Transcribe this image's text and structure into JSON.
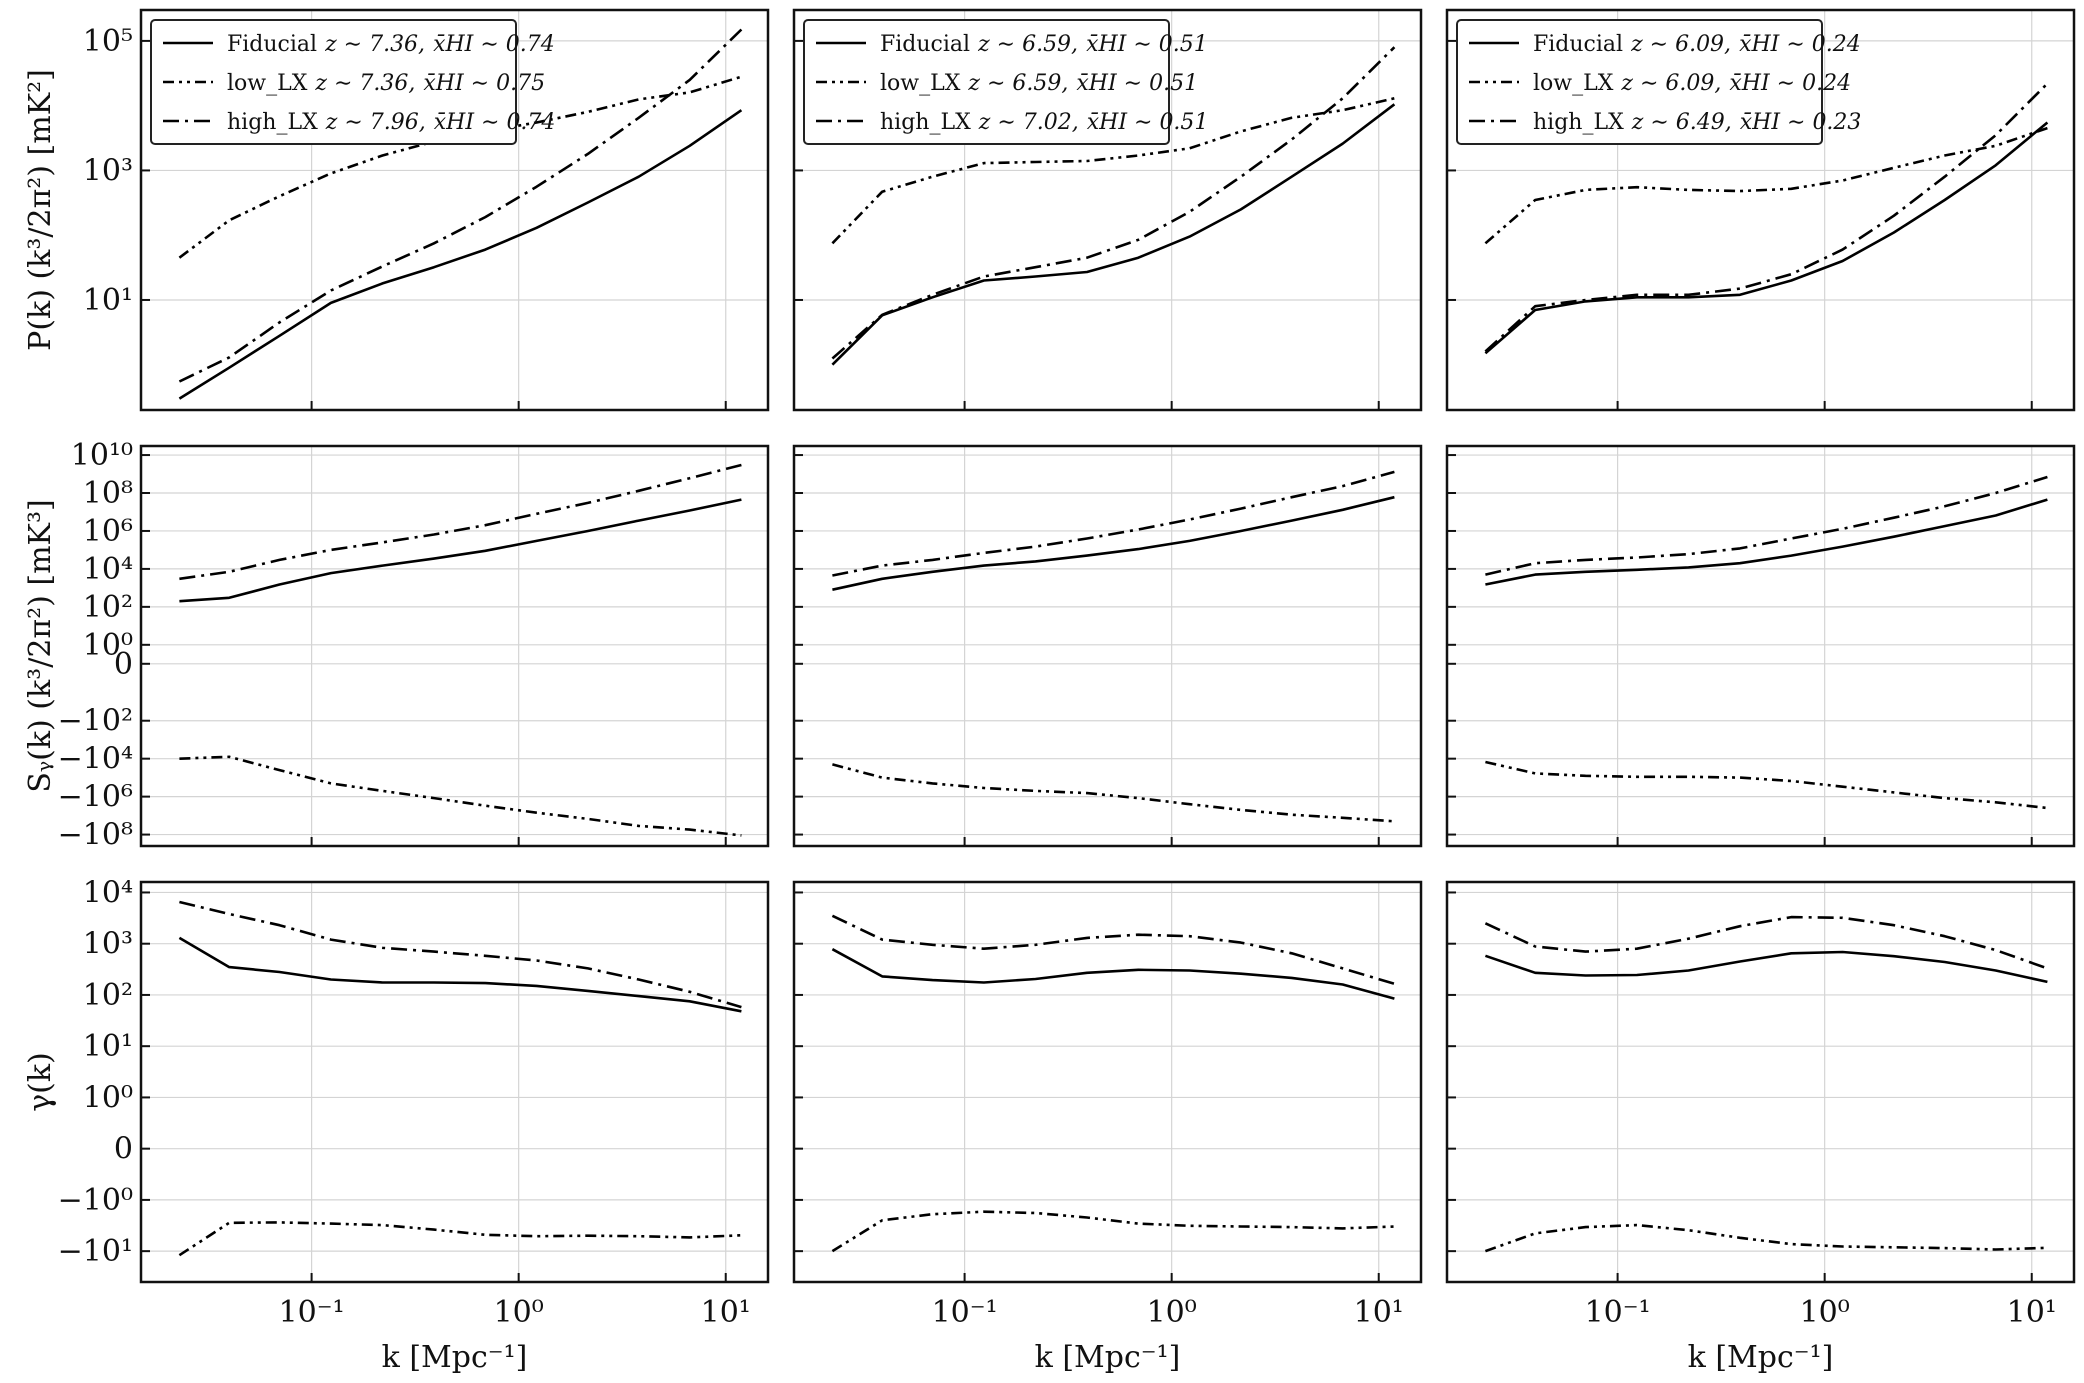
{
  "chart_data": {
    "type": "line",
    "layout": "3 rows x 3 columns, shared log x-axis",
    "x": [
      0.023,
      0.04,
      0.07,
      0.124,
      0.22,
      0.39,
      0.69,
      1.22,
      2.16,
      3.8,
      6.7,
      11.9
    ],
    "xlabel": "k [Mpc⁻¹]",
    "xlim": [
      0.015,
      16
    ],
    "x_ticks": [
      {
        "v": 0.1,
        "label": "10⁻¹"
      },
      {
        "v": 1,
        "label": "10⁰"
      },
      {
        "v": 10,
        "label": "10¹"
      }
    ],
    "styles": {
      "Fiducial": "solid",
      "low_LX": "dashdotdot",
      "high_LX": "dashdot"
    },
    "rows": [
      {
        "ylabel": "P(k) (k³/2π²) [mK²]",
        "scale": "log",
        "ylim": [
          0.2,
          300000
        ],
        "y_ticks": [
          {
            "v": 10,
            "label": "10¹"
          },
          {
            "v": 1000,
            "label": "10³"
          },
          {
            "v": 100000,
            "label": "10⁵"
          }
        ]
      },
      {
        "ylabel": "Sᵧ(k) (k³/2π²) [mK³]",
        "scale": "symlog",
        "linthresh": 1,
        "ylim": [
          -400000000,
          30000000000
        ],
        "y_ticks": [
          {
            "v": 10000000000,
            "label": "10¹⁰"
          },
          {
            "v": 100000000,
            "label": "10⁸"
          },
          {
            "v": 1000000,
            "label": "10⁶"
          },
          {
            "v": 10000,
            "label": "10⁴"
          },
          {
            "v": 100,
            "label": "10²"
          },
          {
            "v": 1,
            "label": "10⁰"
          },
          {
            "v": 0,
            "label": "0"
          },
          {
            "v": -100,
            "label": "−10²"
          },
          {
            "v": -10000,
            "label": "−10⁴"
          },
          {
            "v": -1000000,
            "label": "−10⁶"
          },
          {
            "v": -100000000,
            "label": "−10⁸"
          }
        ]
      },
      {
        "ylabel": "γ(k)",
        "scale": "symlog",
        "linthresh": 1,
        "ylim": [
          -40,
          16000
        ],
        "y_ticks": [
          {
            "v": 10000,
            "label": "10⁴"
          },
          {
            "v": 1000,
            "label": "10³"
          },
          {
            "v": 100,
            "label": "10²"
          },
          {
            "v": 10,
            "label": "10¹"
          },
          {
            "v": 1,
            "label": "10⁰"
          },
          {
            "v": 0,
            "label": "0"
          },
          {
            "v": -1,
            "label": "−10⁰"
          },
          {
            "v": -10,
            "label": "−10¹"
          }
        ]
      }
    ],
    "columns": [
      {
        "legend": [
          {
            "style": "solid",
            "name": "Fiducial",
            "z": "z ∼ 7.36,",
            "xhi": "x̄HI ∼ 0.74"
          },
          {
            "style": "dashdotdot",
            "name": "low_LX",
            "z": "z ∼ 7.36,",
            "xhi": "x̄HI ∼ 0.75"
          },
          {
            "style": "dashdot",
            "name": "high_LX",
            "z": "z ∼ 7.96,",
            "xhi": "x̄HI ∼ 0.74"
          }
        ],
        "series": {
          "power": {
            "Fiducial": [
              0.3,
              0.9,
              2.8,
              9,
              18,
              32,
              60,
              130,
              320,
              800,
              2400,
              8500
            ],
            "low_LX": [
              45,
              170,
              400,
              900,
              1700,
              2800,
              4000,
              5500,
              8000,
              12500,
              16000,
              28000
            ],
            "high_LX": [
              0.55,
              1.3,
              4.5,
              14,
              33,
              75,
              190,
              560,
              1800,
              6500,
              25000,
              150000
            ]
          },
          "skew": {
            "Fiducial": [
              200,
              300,
              1500,
              6000,
              15000,
              35000,
              90000,
              300000,
              1000000,
              3500000,
              12000000,
              45000000
            ],
            "high_LX": [
              3000,
              7000,
              30000,
              100000,
              250000,
              650000,
              2000000,
              8000000,
              30000000,
              130000000,
              600000000,
              3000000000
            ],
            "low_LX": [
              -10000,
              -8000,
              -40000,
              -200000,
              -500000,
              -1200000,
              -3000000,
              -7000000,
              -15000000,
              -35000000,
              -55000000,
              -110000000
            ]
          },
          "gamma": {
            "Fiducial": [
              1300,
              350,
              280,
              200,
              175,
              175,
              170,
              150,
              120,
              95,
              75,
              48
            ],
            "high_LX": [
              6500,
              3800,
              2300,
              1200,
              830,
              700,
              580,
              470,
              330,
              200,
              115,
              58
            ],
            "low_LX": [
              -12,
              -2.8,
              -2.75,
              -2.9,
              -3.1,
              -3.8,
              -4.8,
              -5.1,
              -5.0,
              -5.1,
              -5.4,
              -4.9
            ]
          }
        }
      },
      {
        "legend": [
          {
            "style": "solid",
            "name": "Fiducial",
            "z": "z ∼ 6.59,",
            "xhi": "x̄HI ∼ 0.51"
          },
          {
            "style": "dashdotdot",
            "name": "low_LX",
            "z": "z ∼ 6.59,",
            "xhi": "x̄HI ∼ 0.51"
          },
          {
            "style": "dashdot",
            "name": "high_LX",
            "z": "z ∼ 7.02,",
            "xhi": "x̄HI ∼ 0.51"
          }
        ],
        "series": {
          "power": {
            "Fiducial": [
              1.0,
              5.8,
              11,
              20,
              23,
              27,
              45,
              95,
              250,
              800,
              2600,
              10500
            ],
            "low_LX": [
              75,
              470,
              800,
              1300,
              1350,
              1400,
              1700,
              2200,
              4000,
              6500,
              8500,
              13000
            ],
            "high_LX": [
              1.25,
              5.9,
              12,
              23,
              32,
              45,
              85,
              230,
              800,
              3000,
              13000,
              80000
            ]
          },
          "skew": {
            "Fiducial": [
              800,
              3000,
              7000,
              15000,
              25000,
              50000,
              110000,
              300000,
              1000000,
              3500000,
              13000000,
              60000000
            ],
            "high_LX": [
              4500,
              15000,
              30000,
              70000,
              150000,
              400000,
              1200000,
              4000000,
              15000000,
              60000000,
              230000000,
              1300000000
            ],
            "low_LX": [
              -20000,
              -100000,
              -200000,
              -350000,
              -500000,
              -650000,
              -1200000,
              -2500000,
              -5000000,
              -9000000,
              -13000000,
              -20000000
            ]
          },
          "gamma": {
            "Fiducial": [
              780,
              230,
              195,
              175,
              205,
              270,
              310,
              300,
              260,
              215,
              160,
              85
            ],
            "high_LX": [
              3500,
              1200,
              950,
              800,
              950,
              1300,
              1500,
              1400,
              1050,
              650,
              330,
              165
            ],
            "low_LX": [
              -10,
              -2.5,
              -1.9,
              -1.7,
              -1.8,
              -2.2,
              -2.9,
              -3.2,
              -3.3,
              -3.4,
              -3.6,
              -3.3
            ]
          }
        }
      },
      {
        "legend": [
          {
            "style": "solid",
            "name": "Fiducial",
            "z": "z ∼ 6.09,",
            "xhi": "x̄HI ∼ 0.24"
          },
          {
            "style": "dashdotdot",
            "name": "low_LX",
            "z": "z ∼ 6.09,",
            "xhi": "x̄HI ∼ 0.24"
          },
          {
            "style": "dashdot",
            "name": "high_LX",
            "z": "z ∼ 6.49,",
            "xhi": "x̄HI ∼ 0.23"
          }
        ],
        "series": {
          "power": {
            "Fiducial": [
              1.5,
              7,
              9.5,
              11,
              11,
              12,
              20,
              40,
              110,
              350,
              1200,
              5500
            ],
            "low_LX": [
              75,
              350,
              500,
              550,
              500,
              480,
              520,
              700,
              1100,
              1700,
              2400,
              4500
            ],
            "high_LX": [
              1.6,
              8,
              10,
              12,
              12,
              15,
              25,
              60,
              200,
              800,
              3500,
              22000
            ]
          },
          "skew": {
            "Fiducial": [
              1500,
              5000,
              7000,
              9000,
              12000,
              20000,
              50000,
              150000,
              500000,
              1800000,
              6500000,
              45000000
            ],
            "high_LX": [
              5000,
              20000,
              30000,
              40000,
              60000,
              120000,
              400000,
              1300000,
              5000000,
              20000000,
              100000000,
              700000000
            ],
            "low_LX": [
              -15000,
              -60000,
              -80000,
              -90000,
              -90000,
              -100000,
              -150000,
              -300000,
              -600000,
              -1200000,
              -2000000,
              -4000000
            ]
          },
          "gamma": {
            "Fiducial": [
              580,
              270,
              240,
              245,
              300,
              450,
              650,
              690,
              570,
              440,
              300,
              180
            ],
            "high_LX": [
              2500,
              880,
              700,
              800,
              1250,
              2200,
              3300,
              3200,
              2300,
              1400,
              750,
              330
            ],
            "low_LX": [
              -10,
              -4.5,
              -3.4,
              -3.1,
              -3.9,
              -5.5,
              -7.3,
              -8.1,
              -8.4,
              -8.7,
              -9.3,
              -8.6
            ]
          }
        }
      }
    ]
  }
}
